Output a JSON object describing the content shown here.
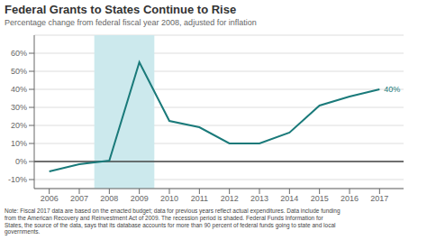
{
  "chart_data": {
    "type": "line",
    "title": "Federal Grants to States Continue to Rise",
    "subtitle": "Percentage change from federal fiscal year 2008, adjusted for inflation",
    "x": [
      2006,
      2007,
      2008,
      2009,
      2010,
      2011,
      2012,
      2013,
      2014,
      2015,
      2016,
      2017
    ],
    "values": [
      -5.5,
      -1.5,
      0.5,
      55,
      22.5,
      19,
      10,
      10,
      16,
      31,
      36,
      40
    ],
    "color": "#1a7a7a",
    "xlim": [
      2005.5,
      2017.8
    ],
    "xticks": [
      2006,
      2007,
      2008,
      2009,
      2010,
      2011,
      2012,
      2013,
      2014,
      2015,
      2016,
      2017
    ],
    "ylim": [
      -15,
      70
    ],
    "yticks": [
      {
        "value": -10,
        "label": "-10%"
      },
      {
        "value": 0,
        "label": "0%"
      },
      {
        "value": 10,
        "label": "10%"
      },
      {
        "value": 20,
        "label": "20%"
      },
      {
        "value": 30,
        "label": "30%"
      },
      {
        "value": 40,
        "label": "40%"
      },
      {
        "value": 50,
        "label": "50%"
      },
      {
        "value": 60,
        "label": "60%"
      }
    ],
    "grid": true,
    "shaded_span": {
      "x_start": 2007.5,
      "x_end": 2009.5,
      "color": "#cce9ed"
    },
    "reference_lines": [
      {
        "y": 0,
        "color": "#444444"
      }
    ],
    "annotations": [
      {
        "x": 2017,
        "y": 40,
        "text": "40%"
      }
    ],
    "note": "Note: Fiscal 2017 data are based on the enacted budget; data for previous years reflect actual expenditures. Data include funding\nfrom the American Recovery and Reinvestment Act of 2009. The recession period is shaded. Federal Funds Information for\nStates, the source of the data, says that its database accounts for more than 90 percent of federal funds going to state and local\ngovernments."
  }
}
